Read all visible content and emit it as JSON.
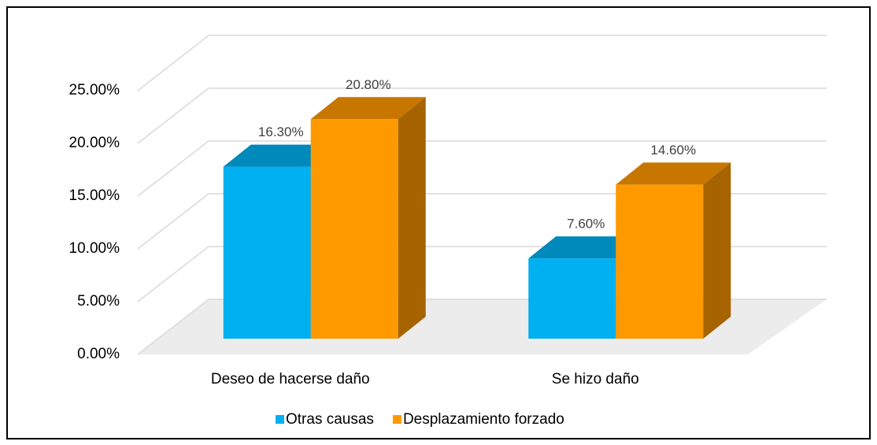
{
  "chart_data": {
    "type": "bar3d",
    "categories": [
      "Deseo de hacerse daño",
      "Se hizo daño"
    ],
    "series": [
      {
        "name": "Otras causas",
        "color": "#00b0f0",
        "values": [
          16.3,
          7.6
        ],
        "value_labels": [
          "16.30%",
          "7.60%"
        ]
      },
      {
        "name": "Desplazamiento forzado",
        "color": "#ff9900",
        "values": [
          20.8,
          14.6
        ],
        "value_labels": [
          "20.80%",
          "14.60%"
        ]
      }
    ],
    "ylim": [
      0,
      25
    ],
    "yticks": [
      {
        "value": 0,
        "label": "0.00%"
      },
      {
        "value": 5,
        "label": "5.00%"
      },
      {
        "value": 10,
        "label": "10.00%"
      },
      {
        "value": 15,
        "label": "15.00%"
      },
      {
        "value": 20,
        "label": "20.00%"
      },
      {
        "value": 25,
        "label": "25.00%"
      }
    ],
    "grid": true,
    "legend": "bottom"
  }
}
